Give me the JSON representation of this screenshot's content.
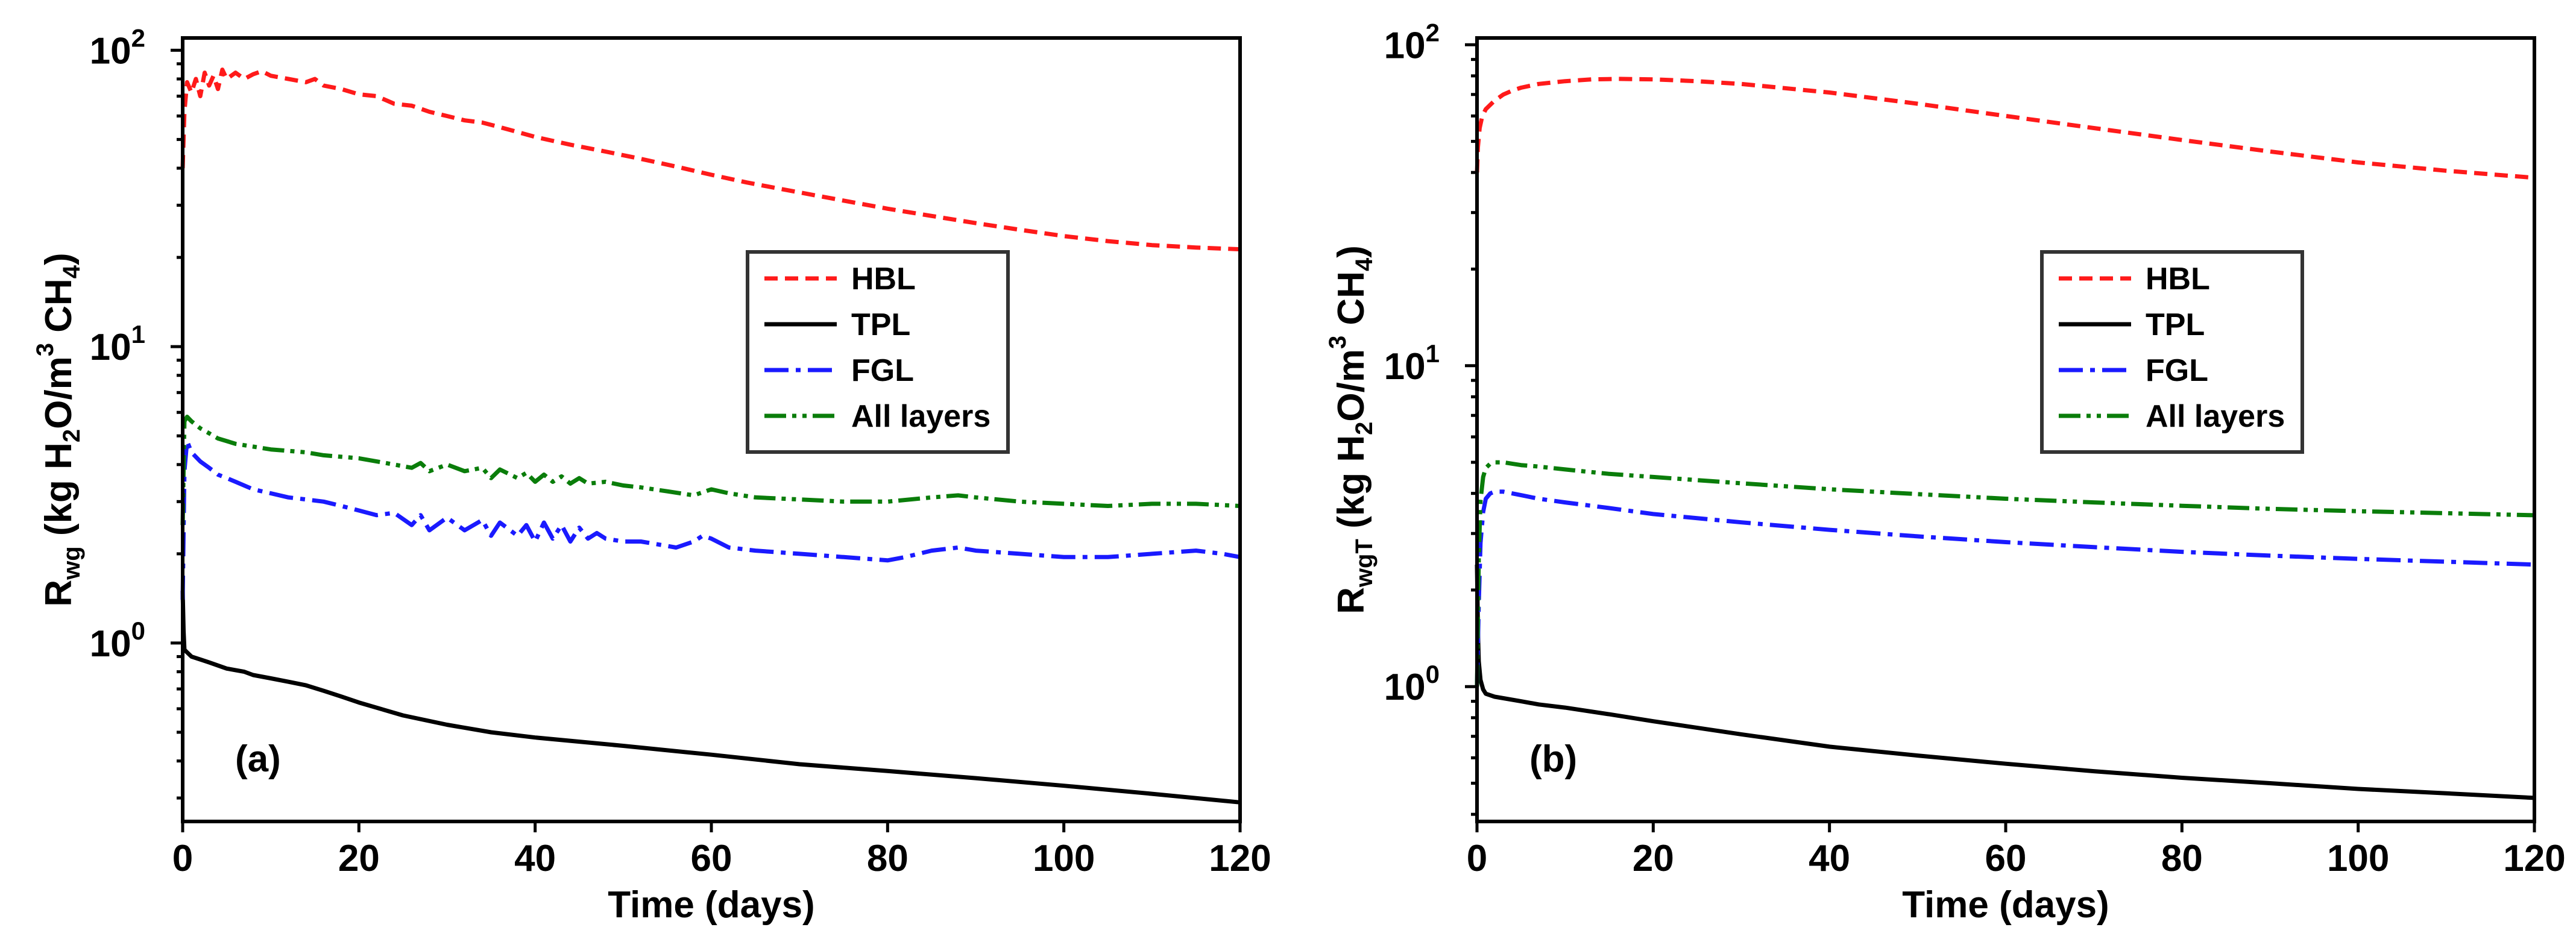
{
  "chart_data": [
    {
      "type": "line",
      "panel_label": "(a)",
      "xlabel": "Time (days)",
      "ylabel": {
        "main": "R",
        "sub": "wg",
        "rest": " (kg H",
        "h2o_sub": "2",
        "mid": "O/m",
        "sup": "3",
        "gap": " CH",
        "ch4_sub": "4",
        "end": ")"
      },
      "yscale": "log",
      "xlim": [
        0,
        120
      ],
      "ylim": [
        0.25,
        110
      ],
      "x_ticks": [
        0,
        20,
        40,
        60,
        80,
        100,
        120
      ],
      "y_ticks": [
        {
          "value": 1,
          "base": "10",
          "exp": "0"
        },
        {
          "value": 10,
          "base": "10",
          "exp": "1"
        },
        {
          "value": 100,
          "base": "10",
          "exp": "2"
        }
      ],
      "legend_position": "center-right",
      "series": [
        {
          "name": "HBL",
          "color": "#ff1a1a",
          "style": "dashed",
          "x": [
            0,
            0.2,
            0.5,
            1,
            1.5,
            2,
            2.5,
            3,
            3.5,
            4,
            4.5,
            5,
            6,
            7,
            8,
            9,
            10,
            12,
            14,
            15,
            16,
            18,
            20,
            22,
            24,
            26,
            28,
            30,
            32,
            34,
            36,
            38,
            40,
            44,
            48,
            52,
            56,
            60,
            64,
            68,
            72,
            76,
            80,
            85,
            90,
            95,
            100,
            105,
            110,
            115,
            120
          ],
          "y": [
            40,
            62,
            78,
            72,
            80,
            70,
            84,
            76,
            82,
            74,
            86,
            80,
            84,
            80,
            83,
            85,
            82,
            80,
            78,
            80,
            76,
            74,
            71,
            70,
            66,
            65,
            62,
            60,
            58,
            57,
            55,
            53,
            51,
            48,
            45.5,
            43,
            40.5,
            38,
            35.8,
            34,
            32.3,
            30.7,
            29.2,
            27.6,
            26.1,
            24.8,
            23.6,
            22.7,
            22,
            21.6,
            21.3
          ]
        },
        {
          "name": "TPL",
          "color": "#000000",
          "style": "solid",
          "x": [
            0,
            0.1,
            0.2,
            0.5,
            1,
            2,
            3,
            4,
            5,
            6,
            7,
            8,
            10,
            12,
            14,
            16,
            18,
            20,
            25,
            30,
            35,
            40,
            50,
            60,
            70,
            80,
            90,
            100,
            110,
            120
          ],
          "y": [
            1.5,
            1.1,
            0.95,
            0.93,
            0.9,
            0.88,
            0.86,
            0.84,
            0.82,
            0.81,
            0.8,
            0.78,
            0.76,
            0.74,
            0.72,
            0.69,
            0.66,
            0.63,
            0.57,
            0.53,
            0.5,
            0.48,
            0.45,
            0.42,
            0.39,
            0.37,
            0.35,
            0.33,
            0.31,
            0.29
          ]
        },
        {
          "name": "FGL",
          "color": "#1a1aff",
          "style": "dashdot",
          "x": [
            0,
            0.2,
            0.5,
            1,
            2,
            3,
            4,
            5,
            6,
            8,
            10,
            12,
            14,
            16,
            18,
            20,
            22,
            24,
            26,
            27,
            28,
            30,
            32,
            34,
            35,
            36,
            38,
            39,
            40,
            41,
            42,
            43,
            44,
            45,
            46,
            47,
            48,
            50,
            52,
            54,
            56,
            58,
            59,
            60,
            62,
            65,
            70,
            75,
            80,
            82,
            85,
            88,
            90,
            95,
            100,
            105,
            110,
            115,
            118,
            120
          ],
          "y": [
            1.4,
            3.8,
            4.8,
            4.4,
            4.1,
            3.9,
            3.7,
            3.6,
            3.5,
            3.3,
            3.2,
            3.1,
            3.05,
            3.0,
            2.9,
            2.8,
            2.7,
            2.75,
            2.5,
            2.7,
            2.4,
            2.65,
            2.4,
            2.6,
            2.3,
            2.55,
            2.3,
            2.5,
            2.2,
            2.55,
            2.25,
            2.5,
            2.2,
            2.45,
            2.25,
            2.35,
            2.25,
            2.2,
            2.2,
            2.15,
            2.1,
            2.2,
            2.3,
            2.25,
            2.1,
            2.05,
            2.0,
            1.95,
            1.9,
            1.95,
            2.05,
            2.1,
            2.05,
            2.0,
            1.95,
            1.95,
            2.0,
            2.05,
            2.0,
            1.95
          ]
        },
        {
          "name": "All layers",
          "color": "#0a7d0a",
          "style": "dashdotdot",
          "x": [
            0,
            0.2,
            0.5,
            1,
            2,
            3,
            4,
            5,
            6,
            8,
            10,
            12,
            14,
            16,
            18,
            20,
            22,
            24,
            26,
            27,
            28,
            30,
            32,
            34,
            35,
            36,
            38,
            39,
            40,
            41,
            42,
            43,
            44,
            45,
            46,
            48,
            50,
            52,
            55,
            58,
            60,
            62,
            65,
            70,
            75,
            80,
            85,
            88,
            90,
            95,
            100,
            105,
            110,
            115,
            120
          ],
          "y": [
            2.5,
            5.6,
            5.8,
            5.6,
            5.3,
            5.1,
            4.9,
            4.8,
            4.7,
            4.6,
            4.5,
            4.45,
            4.4,
            4.3,
            4.25,
            4.2,
            4.1,
            4.0,
            3.9,
            4.05,
            3.8,
            4.0,
            3.8,
            3.9,
            3.6,
            3.85,
            3.6,
            3.75,
            3.5,
            3.7,
            3.5,
            3.65,
            3.45,
            3.6,
            3.45,
            3.5,
            3.4,
            3.35,
            3.25,
            3.15,
            3.3,
            3.2,
            3.1,
            3.05,
            3.0,
            3.0,
            3.1,
            3.15,
            3.1,
            3.0,
            2.95,
            2.9,
            2.95,
            2.95,
            2.9
          ]
        }
      ]
    },
    {
      "type": "line",
      "panel_label": "(b)",
      "xlabel": "Time (days)",
      "ylabel": {
        "main": "R",
        "sub": "wgT",
        "rest": " (kg H",
        "h2o_sub": "2",
        "mid": "O/m",
        "sup": "3",
        "gap": " CH",
        "ch4_sub": "4",
        "end": ")"
      },
      "yscale": "log",
      "xlim": [
        0,
        120
      ],
      "ylim": [
        0.38,
        105
      ],
      "x_ticks": [
        0,
        20,
        40,
        60,
        80,
        100,
        120
      ],
      "y_ticks": [
        {
          "value": 1,
          "base": "10",
          "exp": "0"
        },
        {
          "value": 10,
          "base": "10",
          "exp": "1"
        },
        {
          "value": 100,
          "base": "10",
          "exp": "2"
        }
      ],
      "legend_position": "center-right",
      "series": [
        {
          "name": "HBL",
          "color": "#ff1a1a",
          "style": "dashed",
          "x": [
            0,
            0.1,
            0.3,
            0.6,
            1,
            2,
            3,
            4,
            5,
            7,
            10,
            13,
            16,
            20,
            25,
            30,
            40,
            50,
            60,
            70,
            80,
            90,
            100,
            110,
            120
          ],
          "y": [
            40,
            48,
            55,
            60,
            63,
            67,
            70,
            72,
            73.5,
            75.5,
            77,
            78,
            78.3,
            78,
            77,
            75.5,
            71,
            65.5,
            60,
            55,
            50.5,
            46.5,
            43,
            40.5,
            38.5
          ]
        },
        {
          "name": "TPL",
          "color": "#000000",
          "style": "solid",
          "x": [
            0,
            0.1,
            0.2,
            0.4,
            0.7,
            1,
            2,
            3,
            5,
            7,
            10,
            15,
            20,
            30,
            40,
            50,
            60,
            70,
            80,
            90,
            100,
            110,
            120
          ],
          "y": [
            2.4,
            1.5,
            1.2,
            1.05,
            0.98,
            0.95,
            0.93,
            0.92,
            0.9,
            0.88,
            0.86,
            0.82,
            0.78,
            0.71,
            0.65,
            0.61,
            0.575,
            0.545,
            0.52,
            0.5,
            0.48,
            0.465,
            0.45
          ]
        },
        {
          "name": "FGL",
          "color": "#1a1aff",
          "style": "dashdot",
          "x": [
            0,
            0.2,
            0.4,
            0.7,
            1,
            1.5,
            2,
            3,
            4,
            5,
            7,
            10,
            15,
            20,
            30,
            40,
            50,
            60,
            70,
            80,
            90,
            100,
            110,
            120
          ],
          "y": [
            1.0,
            1.8,
            2.8,
            3.5,
            3.85,
            4.0,
            4.05,
            4.05,
            4.0,
            3.95,
            3.85,
            3.75,
            3.6,
            3.45,
            3.25,
            3.08,
            2.94,
            2.82,
            2.72,
            2.63,
            2.56,
            2.5,
            2.45,
            2.4
          ]
        },
        {
          "name": "All layers",
          "color": "#0a7d0a",
          "style": "dashdotdot",
          "x": [
            0,
            0.2,
            0.4,
            0.7,
            1,
            1.5,
            2,
            3,
            4,
            5,
            7,
            10,
            15,
            20,
            30,
            40,
            50,
            60,
            70,
            80,
            90,
            100,
            110,
            120
          ],
          "y": [
            1.0,
            2.5,
            3.8,
            4.5,
            4.8,
            4.95,
            5.0,
            5.0,
            4.95,
            4.9,
            4.85,
            4.75,
            4.6,
            4.5,
            4.3,
            4.12,
            3.98,
            3.85,
            3.75,
            3.66,
            3.58,
            3.52,
            3.47,
            3.42
          ]
        }
      ]
    }
  ]
}
